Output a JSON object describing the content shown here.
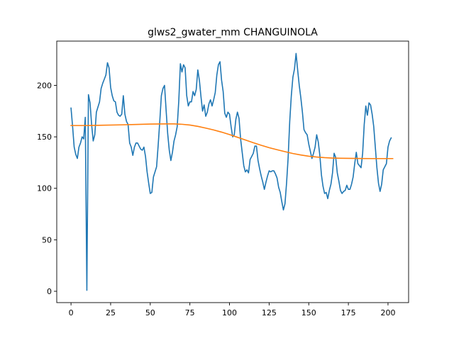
{
  "chart_data": {
    "type": "line",
    "title": "glws2_gwater_mm CHANGUINOLA",
    "xlabel": "",
    "ylabel": "",
    "xlim": [
      -9,
      213
    ],
    "ylim": [
      -11,
      243
    ],
    "xticks": [
      0,
      25,
      50,
      75,
      100,
      125,
      150,
      175,
      200
    ],
    "yticks": [
      0,
      50,
      100,
      150,
      200
    ],
    "grid": false,
    "legend": "none",
    "series": [
      {
        "color": "#1f77b4",
        "points": [
          [
            0,
            178
          ],
          [
            1,
            160
          ],
          [
            2,
            140
          ],
          [
            3,
            133
          ],
          [
            4,
            129
          ],
          [
            5,
            140
          ],
          [
            6,
            144
          ],
          [
            7,
            150
          ],
          [
            8,
            148
          ],
          [
            9,
            169
          ],
          [
            10,
            1
          ],
          [
            11,
            191
          ],
          [
            12,
            183
          ],
          [
            13,
            162
          ],
          [
            14,
            146
          ],
          [
            15,
            152
          ],
          [
            16,
            174
          ],
          [
            17,
            179
          ],
          [
            18,
            184
          ],
          [
            19,
            197
          ],
          [
            20,
            202
          ],
          [
            21,
            206
          ],
          [
            22,
            210
          ],
          [
            23,
            222
          ],
          [
            24,
            217
          ],
          [
            25,
            198
          ],
          [
            26,
            190
          ],
          [
            27,
            185
          ],
          [
            28,
            184
          ],
          [
            29,
            174
          ],
          [
            30,
            171
          ],
          [
            31,
            170
          ],
          [
            32,
            172
          ],
          [
            33,
            190
          ],
          [
            34,
            172
          ],
          [
            35,
            165
          ],
          [
            36,
            162
          ],
          [
            37,
            144
          ],
          [
            38,
            140
          ],
          [
            39,
            132
          ],
          [
            40,
            140
          ],
          [
            41,
            144
          ],
          [
            42,
            144
          ],
          [
            43,
            141
          ],
          [
            44,
            138
          ],
          [
            45,
            137
          ],
          [
            46,
            140
          ],
          [
            47,
            131
          ],
          [
            48,
            116
          ],
          [
            49,
            105
          ],
          [
            50,
            95
          ],
          [
            51,
            96
          ],
          [
            52,
            111
          ],
          [
            53,
            116
          ],
          [
            54,
            121
          ],
          [
            55,
            142
          ],
          [
            56,
            165
          ],
          [
            57,
            190
          ],
          [
            58,
            197
          ],
          [
            59,
            200
          ],
          [
            60,
            176
          ],
          [
            61,
            153
          ],
          [
            62,
            137
          ],
          [
            63,
            127
          ],
          [
            64,
            135
          ],
          [
            65,
            146
          ],
          [
            66,
            152
          ],
          [
            67,
            160
          ],
          [
            68,
            185
          ],
          [
            69,
            221
          ],
          [
            70,
            213
          ],
          [
            71,
            220
          ],
          [
            72,
            217
          ],
          [
            73,
            190
          ],
          [
            74,
            180
          ],
          [
            75,
            184
          ],
          [
            76,
            184
          ],
          [
            77,
            194
          ],
          [
            78,
            190
          ],
          [
            79,
            196
          ],
          [
            80,
            215
          ],
          [
            81,
            205
          ],
          [
            82,
            189
          ],
          [
            83,
            175
          ],
          [
            84,
            181
          ],
          [
            85,
            170
          ],
          [
            86,
            174
          ],
          [
            87,
            182
          ],
          [
            88,
            186
          ],
          [
            89,
            180
          ],
          [
            90,
            186
          ],
          [
            91,
            193
          ],
          [
            92,
            210
          ],
          [
            93,
            220
          ],
          [
            94,
            223
          ],
          [
            95,
            205
          ],
          [
            96,
            194
          ],
          [
            97,
            173
          ],
          [
            98,
            169
          ],
          [
            99,
            174
          ],
          [
            100,
            172
          ],
          [
            101,
            160
          ],
          [
            102,
            150
          ],
          [
            103,
            152
          ],
          [
            104,
            167
          ],
          [
            105,
            174
          ],
          [
            106,
            168
          ],
          [
            107,
            148
          ],
          [
            108,
            135
          ],
          [
            109,
            122
          ],
          [
            110,
            116
          ],
          [
            111,
            118
          ],
          [
            112,
            115
          ],
          [
            113,
            128
          ],
          [
            114,
            131
          ],
          [
            115,
            134
          ],
          [
            116,
            141
          ],
          [
            117,
            141
          ],
          [
            118,
            127
          ],
          [
            119,
            119
          ],
          [
            120,
            112
          ],
          [
            121,
            106
          ],
          [
            122,
            99
          ],
          [
            123,
            106
          ],
          [
            124,
            112
          ],
          [
            125,
            117
          ],
          [
            126,
            116
          ],
          [
            127,
            117
          ],
          [
            128,
            117
          ],
          [
            129,
            114
          ],
          [
            130,
            110
          ],
          [
            131,
            101
          ],
          [
            132,
            96
          ],
          [
            133,
            87
          ],
          [
            134,
            79
          ],
          [
            135,
            85
          ],
          [
            136,
            105
          ],
          [
            137,
            130
          ],
          [
            138,
            165
          ],
          [
            139,
            190
          ],
          [
            140,
            208
          ],
          [
            141,
            216
          ],
          [
            142,
            231
          ],
          [
            143,
            215
          ],
          [
            144,
            200
          ],
          [
            145,
            188
          ],
          [
            146,
            174
          ],
          [
            147,
            157
          ],
          [
            148,
            154
          ],
          [
            149,
            152
          ],
          [
            150,
            143
          ],
          [
            151,
            136
          ],
          [
            152,
            129
          ],
          [
            153,
            134
          ],
          [
            154,
            140
          ],
          [
            155,
            152
          ],
          [
            156,
            145
          ],
          [
            157,
            132
          ],
          [
            158,
            113
          ],
          [
            159,
            102
          ],
          [
            160,
            95
          ],
          [
            161,
            96
          ],
          [
            162,
            90
          ],
          [
            163,
            98
          ],
          [
            164,
            104
          ],
          [
            165,
            115
          ],
          [
            166,
            134
          ],
          [
            167,
            130
          ],
          [
            168,
            115
          ],
          [
            169,
            107
          ],
          [
            170,
            98
          ],
          [
            171,
            95
          ],
          [
            172,
            97
          ],
          [
            173,
            98
          ],
          [
            174,
            103
          ],
          [
            175,
            99
          ],
          [
            176,
            99
          ],
          [
            177,
            104
          ],
          [
            178,
            111
          ],
          [
            179,
            124
          ],
          [
            180,
            135
          ],
          [
            181,
            124
          ],
          [
            182,
            122
          ],
          [
            183,
            120
          ],
          [
            184,
            134
          ],
          [
            185,
            162
          ],
          [
            186,
            180
          ],
          [
            187,
            171
          ],
          [
            188,
            183
          ],
          [
            189,
            181
          ],
          [
            190,
            172
          ],
          [
            191,
            160
          ],
          [
            192,
            140
          ],
          [
            193,
            120
          ],
          [
            194,
            105
          ],
          [
            195,
            97
          ],
          [
            196,
            104
          ],
          [
            197,
            118
          ],
          [
            198,
            121
          ],
          [
            199,
            124
          ],
          [
            200,
            140
          ],
          [
            201,
            146
          ],
          [
            202,
            149
          ]
        ]
      },
      {
        "color": "#ff7f0e",
        "points": [
          [
            0,
            161
          ],
          [
            10,
            161
          ],
          [
            20,
            161.3
          ],
          [
            30,
            161.6
          ],
          [
            40,
            162
          ],
          [
            50,
            162.4
          ],
          [
            60,
            162.6
          ],
          [
            65,
            162.6
          ],
          [
            70,
            162.2
          ],
          [
            75,
            161.5
          ],
          [
            80,
            160.2
          ],
          [
            85,
            158.5
          ],
          [
            90,
            156.7
          ],
          [
            95,
            154.6
          ],
          [
            100,
            152.2
          ],
          [
            105,
            149.6
          ],
          [
            110,
            147
          ],
          [
            115,
            144.3
          ],
          [
            120,
            141.8
          ],
          [
            125,
            139.5
          ],
          [
            130,
            137.5
          ],
          [
            135,
            135.6
          ],
          [
            140,
            133.8
          ],
          [
            145,
            132.4
          ],
          [
            150,
            131.2
          ],
          [
            155,
            130.4
          ],
          [
            160,
            129.8
          ],
          [
            165,
            129.4
          ],
          [
            170,
            129.2
          ],
          [
            180,
            129
          ],
          [
            190,
            128.9
          ],
          [
            203,
            128.9
          ]
        ]
      }
    ]
  }
}
